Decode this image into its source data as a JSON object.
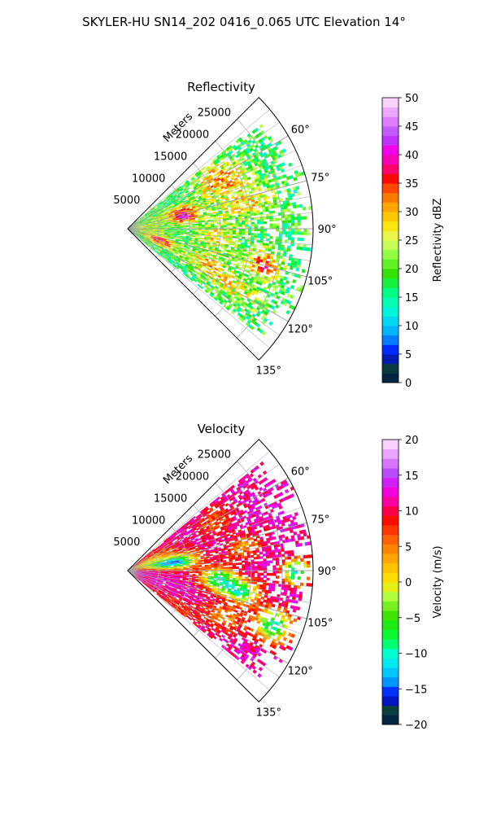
{
  "suptitle": "SKYLER-HU  SN14_202  0416_0.065 UTC Elevation 14°",
  "chart_data": [
    {
      "type": "heatmap",
      "projection": "polar-sector",
      "title": "Reflectivity",
      "radial_label": "Meters",
      "range_ticks": [
        5000,
        10000,
        15000,
        20000,
        25000
      ],
      "range_tick_labels": [
        "5000",
        "10000",
        "15000",
        "20000",
        "25000"
      ],
      "rlim": [
        0,
        30000
      ],
      "azimuth_ticks": [
        60,
        75,
        90,
        105,
        120,
        135
      ],
      "azimuth_tick_labels": [
        "60°",
        "75°",
        "90°",
        "105°",
        "120°",
        "135°"
      ],
      "azimuth_range": [
        45,
        135
      ],
      "grid": true,
      "colorbar": {
        "label": "Reflectivity dBZ",
        "range": [
          0,
          50
        ],
        "ticks": [
          0,
          5,
          10,
          15,
          20,
          25,
          30,
          35,
          40,
          45,
          50
        ],
        "tick_labels": [
          "0",
          "5",
          "10",
          "15",
          "20",
          "25",
          "30",
          "35",
          "40",
          "45",
          "50"
        ],
        "stops": [
          {
            "v": 0,
            "c": "#001a40"
          },
          {
            "v": 3,
            "c": "#0a4040"
          },
          {
            "v": 5,
            "c": "#0000ff"
          },
          {
            "v": 8,
            "c": "#0096ff"
          },
          {
            "v": 10,
            "c": "#00c8ff"
          },
          {
            "v": 13,
            "c": "#00ffd0"
          },
          {
            "v": 16,
            "c": "#00ff80"
          },
          {
            "v": 19,
            "c": "#30e000"
          },
          {
            "v": 22,
            "c": "#80ff40"
          },
          {
            "v": 25,
            "c": "#e0ff60"
          },
          {
            "v": 28,
            "c": "#ffe000"
          },
          {
            "v": 31,
            "c": "#ffa000"
          },
          {
            "v": 34,
            "c": "#ff5000"
          },
          {
            "v": 36,
            "c": "#ff0000"
          },
          {
            "v": 38,
            "c": "#ff0090"
          },
          {
            "v": 41,
            "c": "#ee00ee"
          },
          {
            "v": 43,
            "c": "#b040ff"
          },
          {
            "v": 46,
            "c": "#e080ff"
          },
          {
            "v": 50,
            "c": "#ffe8ff"
          }
        ]
      },
      "field": {
        "base": 18,
        "noise": 6,
        "max_range": 30000,
        "max_range_jitter": 4000,
        "coverage_near": 0.96,
        "coverage_far": 0.5,
        "blobs": [
          {
            "az": 60,
            "r": 15500,
            "az_w": 6,
            "r_w": 2200,
            "amp": 12
          },
          {
            "az": 65,
            "r": 19000,
            "az_w": 5,
            "r_w": 2000,
            "amp": 8
          },
          {
            "az": 72,
            "r": 8500,
            "az_w": 5,
            "r_w": 2200,
            "amp": 14
          },
          {
            "az": 79,
            "r": 9500,
            "az_w": 4,
            "r_w": 1500,
            "amp": 16
          },
          {
            "az": 77,
            "r": 19000,
            "az_w": 5,
            "r_w": 3500,
            "amp": 10
          },
          {
            "az": 95,
            "r": 14500,
            "az_w": 6,
            "r_w": 2500,
            "amp": 10
          },
          {
            "az": 110,
            "r": 5500,
            "az_w": 5,
            "r_w": 1800,
            "amp": 16
          },
          {
            "az": 104,
            "r": 22500,
            "az_w": 4,
            "r_w": 2000,
            "amp": 16
          },
          {
            "az": 113,
            "r": 13500,
            "az_w": 5,
            "r_w": 2500,
            "amp": 11
          },
          {
            "az": 118,
            "r": 19500,
            "az_w": 4,
            "r_w": 3000,
            "amp": 8
          },
          {
            "az": 90,
            "r": 2500,
            "az_w": 20,
            "r_w": 2500,
            "amp": 7
          }
        ]
      }
    },
    {
      "type": "heatmap",
      "projection": "polar-sector",
      "title": "Velocity",
      "radial_label": "Meters",
      "range_ticks": [
        5000,
        10000,
        15000,
        20000,
        25000
      ],
      "range_tick_labels": [
        "5000",
        "10000",
        "15000",
        "20000",
        "25000"
      ],
      "rlim": [
        0,
        30000
      ],
      "azimuth_ticks": [
        60,
        75,
        90,
        105,
        120,
        135
      ],
      "azimuth_tick_labels": [
        "60°",
        "75°",
        "90°",
        "105°",
        "120°",
        "135°"
      ],
      "azimuth_range": [
        45,
        135
      ],
      "grid": true,
      "colorbar": {
        "label": "Velocity (m/s)",
        "range": [
          -20,
          20
        ],
        "ticks": [
          -20,
          -15,
          -10,
          -5,
          0,
          5,
          10,
          15,
          20
        ],
        "tick_labels": [
          "−20",
          "−15",
          "−10",
          "−5",
          "0",
          "5",
          "10",
          "15",
          "20"
        ],
        "stops": [
          {
            "v": -20,
            "c": "#001a40"
          },
          {
            "v": -18,
            "c": "#0a4040"
          },
          {
            "v": -16,
            "c": "#0000ff"
          },
          {
            "v": -14,
            "c": "#0096ff"
          },
          {
            "v": -12,
            "c": "#00e0ff"
          },
          {
            "v": -10,
            "c": "#00ffd0"
          },
          {
            "v": -8,
            "c": "#00ff40"
          },
          {
            "v": -5,
            "c": "#30e000"
          },
          {
            "v": -2,
            "c": "#b0ff40"
          },
          {
            "v": 0,
            "c": "#ffe800"
          },
          {
            "v": 3,
            "c": "#ffb000"
          },
          {
            "v": 6,
            "c": "#ff6000"
          },
          {
            "v": 9,
            "c": "#ff0000"
          },
          {
            "v": 11,
            "c": "#ff0090"
          },
          {
            "v": 13,
            "c": "#ee00ee"
          },
          {
            "v": 15,
            "c": "#b040ff"
          },
          {
            "v": 17,
            "c": "#e080ff"
          },
          {
            "v": 20,
            "c": "#ffe8ff"
          }
        ]
      },
      "field": {
        "base": 12,
        "noise": 2.5,
        "max_range": 30000,
        "max_range_jitter": 4000,
        "coverage_near": 0.96,
        "coverage_far": 0.5,
        "blobs": [
          {
            "az": 80,
            "r": 7500,
            "az_w": 5,
            "r_w": 2600,
            "amp": -24
          },
          {
            "az": 95,
            "r": 14500,
            "az_w": 5,
            "r_w": 2000,
            "amp": -22
          },
          {
            "az": 100,
            "r": 18500,
            "az_w": 4,
            "r_w": 2000,
            "amp": -20
          },
          {
            "az": 110,
            "r": 25000,
            "az_w": 4,
            "r_w": 2000,
            "amp": -22
          },
          {
            "az": 90,
            "r": 27000,
            "az_w": 3,
            "r_w": 1500,
            "amp": -24
          },
          {
            "az": 70,
            "r": 3500,
            "az_w": 10,
            "r_w": 3000,
            "amp": -12
          },
          {
            "az": 60,
            "r": 16000,
            "az_w": 5,
            "r_w": 2500,
            "amp": -6
          },
          {
            "az": 78,
            "r": 19000,
            "az_w": 4,
            "r_w": 2000,
            "amp": -8
          },
          {
            "az": 125,
            "r": 10000,
            "az_w": 5,
            "r_w": 5000,
            "amp": -4
          },
          {
            "az": 115,
            "r": 17000,
            "az_w": 4,
            "r_w": 2500,
            "amp": -8
          }
        ]
      }
    }
  ]
}
